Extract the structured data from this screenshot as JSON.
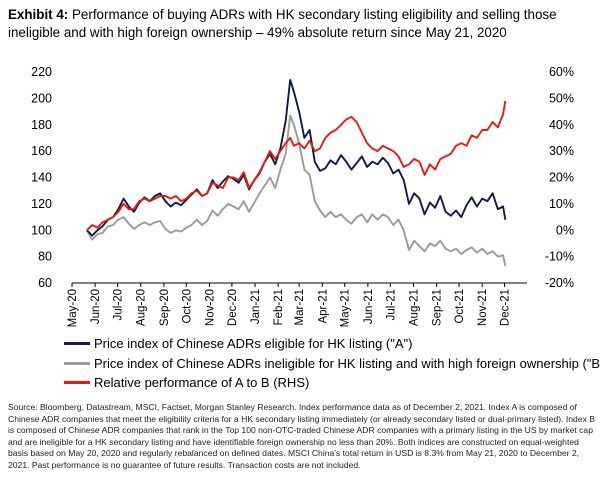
{
  "header": {
    "exhibit": "Exhibit 4:",
    "title": "Performance of buying ADRs with HK secondary listing eligibility and selling those ineligible and with high foreign ownership – 49% absolute return since May 21, 2020"
  },
  "footer": {
    "source": "Source: Bloomberg, Datastream, MSCI, Factset, Morgan Stanley Research. Index performance data as of December 2, 2021. Index A is composed of Chinese ADR companies that meet the eligibility criteria for a HK secondary listing immediately (or already secondary listed or dual-primary listed). Index B is composed of Chinese ADR companies that rank in the Top 100 non-OTC-traded Chinese ADR companies with a primary listing in the US by market cap and are ineligible for a HK secondary listing and have identifiable foreign ownership no less than 20%. Both indices are constructed on equal-weighted basis based on May 20, 2020 and regularly rebalanced on defined dates. MSCI China's total return in USD is 8.3% from May 21, 2020 to December 2, 2021. Past performance is no guarantee of future results. Transaction costs are not included."
  },
  "chart_data": {
    "type": "line",
    "title": "",
    "xlabel": "",
    "ylabel": "",
    "x_ticks": [
      "May-20",
      "Jun-20",
      "Jul-20",
      "Aug-20",
      "Sep-20",
      "Oct-20",
      "Nov-20",
      "Dec-20",
      "Jan-21",
      "Feb-21",
      "Mar-21",
      "Apr-21",
      "May-21",
      "Jun-21",
      "Jul-21",
      "Aug-21",
      "Sep-21",
      "Oct-21",
      "Nov-21",
      "Dec-21"
    ],
    "x_range": [
      "2020-05-01",
      "2021-12-31"
    ],
    "ylim_left": [
      60,
      220
    ],
    "yticks_left": [
      "60",
      "80",
      "100",
      "120",
      "140",
      "160",
      "180",
      "200",
      "220"
    ],
    "ylim_right": [
      -20,
      60
    ],
    "yticks_right": [
      "-20%",
      "-10%",
      "0%",
      "10%",
      "20%",
      "30%",
      "40%",
      "50%",
      "60%"
    ],
    "grid": false,
    "legend_position": "bottom",
    "series": [
      {
        "name": "Price index of Chinese ADRs eligible for HK listing (\"A\")",
        "color": "#0d1a4a",
        "axis": "left",
        "points": [
          [
            "2020-05-21",
            100
          ],
          [
            "2020-05-28",
            96
          ],
          [
            "2020-06-04",
            100
          ],
          [
            "2020-06-11",
            103
          ],
          [
            "2020-06-18",
            108
          ],
          [
            "2020-06-25",
            110
          ],
          [
            "2020-07-02",
            116
          ],
          [
            "2020-07-09",
            124
          ],
          [
            "2020-07-16",
            118
          ],
          [
            "2020-07-23",
            114
          ],
          [
            "2020-07-30",
            121
          ],
          [
            "2020-08-06",
            125
          ],
          [
            "2020-08-13",
            122
          ],
          [
            "2020-08-20",
            126
          ],
          [
            "2020-08-27",
            128
          ],
          [
            "2020-09-03",
            122
          ],
          [
            "2020-09-10",
            118
          ],
          [
            "2020-09-17",
            121
          ],
          [
            "2020-09-24",
            119
          ],
          [
            "2020-10-01",
            123
          ],
          [
            "2020-10-08",
            127
          ],
          [
            "2020-10-15",
            131
          ],
          [
            "2020-10-22",
            126
          ],
          [
            "2020-10-29",
            128
          ],
          [
            "2020-11-05",
            138
          ],
          [
            "2020-11-12",
            132
          ],
          [
            "2020-11-19",
            137
          ],
          [
            "2020-11-26",
            141
          ],
          [
            "2020-12-03",
            139
          ],
          [
            "2020-12-10",
            136
          ],
          [
            "2020-12-17",
            142
          ],
          [
            "2020-12-24",
            131
          ],
          [
            "2020-12-31",
            138
          ],
          [
            "2021-01-07",
            143
          ],
          [
            "2021-01-14",
            152
          ],
          [
            "2021-01-21",
            158
          ],
          [
            "2021-01-28",
            150
          ],
          [
            "2021-02-04",
            162
          ],
          [
            "2021-02-11",
            183
          ],
          [
            "2021-02-17",
            214
          ],
          [
            "2021-02-22",
            205
          ],
          [
            "2021-03-01",
            190
          ],
          [
            "2021-03-08",
            170
          ],
          [
            "2021-03-15",
            176
          ],
          [
            "2021-03-22",
            152
          ],
          [
            "2021-03-29",
            145
          ],
          [
            "2021-04-05",
            147
          ],
          [
            "2021-04-12",
            153
          ],
          [
            "2021-04-19",
            150
          ],
          [
            "2021-04-26",
            157
          ],
          [
            "2021-05-03",
            152
          ],
          [
            "2021-05-10",
            146
          ],
          [
            "2021-05-17",
            151
          ],
          [
            "2021-05-24",
            156
          ],
          [
            "2021-05-31",
            148
          ],
          [
            "2021-06-07",
            152
          ],
          [
            "2021-06-14",
            150
          ],
          [
            "2021-06-21",
            155
          ],
          [
            "2021-06-28",
            151
          ],
          [
            "2021-07-05",
            143
          ],
          [
            "2021-07-12",
            146
          ],
          [
            "2021-07-19",
            138
          ],
          [
            "2021-07-26",
            120
          ],
          [
            "2021-08-02",
            128
          ],
          [
            "2021-08-09",
            124
          ],
          [
            "2021-08-16",
            112
          ],
          [
            "2021-08-23",
            121
          ],
          [
            "2021-08-30",
            117
          ],
          [
            "2021-09-06",
            126
          ],
          [
            "2021-09-13",
            114
          ],
          [
            "2021-09-20",
            111
          ],
          [
            "2021-09-27",
            115
          ],
          [
            "2021-10-04",
            110
          ],
          [
            "2021-10-11",
            119
          ],
          [
            "2021-10-18",
            125
          ],
          [
            "2021-10-25",
            118
          ],
          [
            "2021-11-01",
            124
          ],
          [
            "2021-11-08",
            122
          ],
          [
            "2021-11-15",
            128
          ],
          [
            "2021-11-22",
            116
          ],
          [
            "2021-11-29",
            118
          ],
          [
            "2021-12-02",
            108
          ]
        ]
      },
      {
        "name": "Price index of Chinese ADRs ineligible for HK listing and with high foreign ownership (\"B\")",
        "color": "#9a9a9a",
        "axis": "left",
        "points": [
          [
            "2020-05-21",
            100
          ],
          [
            "2020-05-28",
            93
          ],
          [
            "2020-06-04",
            97
          ],
          [
            "2020-06-11",
            98
          ],
          [
            "2020-06-18",
            103
          ],
          [
            "2020-06-25",
            104
          ],
          [
            "2020-07-02",
            108
          ],
          [
            "2020-07-09",
            110
          ],
          [
            "2020-07-16",
            105
          ],
          [
            "2020-07-23",
            101
          ],
          [
            "2020-07-30",
            104
          ],
          [
            "2020-08-06",
            106
          ],
          [
            "2020-08-13",
            104
          ],
          [
            "2020-08-20",
            106
          ],
          [
            "2020-08-27",
            107
          ],
          [
            "2020-09-03",
            101
          ],
          [
            "2020-09-10",
            98
          ],
          [
            "2020-09-17",
            100
          ],
          [
            "2020-09-24",
            99
          ],
          [
            "2020-10-01",
            102
          ],
          [
            "2020-10-08",
            104
          ],
          [
            "2020-10-15",
            108
          ],
          [
            "2020-10-22",
            104
          ],
          [
            "2020-10-29",
            107
          ],
          [
            "2020-11-05",
            115
          ],
          [
            "2020-11-12",
            111
          ],
          [
            "2020-11-19",
            116
          ],
          [
            "2020-11-26",
            120
          ],
          [
            "2020-12-03",
            118
          ],
          [
            "2020-12-10",
            116
          ],
          [
            "2020-12-17",
            122
          ],
          [
            "2020-12-24",
            114
          ],
          [
            "2020-12-31",
            121
          ],
          [
            "2021-01-07",
            128
          ],
          [
            "2021-01-14",
            134
          ],
          [
            "2021-01-21",
            140
          ],
          [
            "2021-01-28",
            132
          ],
          [
            "2021-02-04",
            146
          ],
          [
            "2021-02-11",
            158
          ],
          [
            "2021-02-17",
            187
          ],
          [
            "2021-02-22",
            180
          ],
          [
            "2021-03-01",
            166
          ],
          [
            "2021-03-08",
            146
          ],
          [
            "2021-03-15",
            142
          ],
          [
            "2021-03-22",
            122
          ],
          [
            "2021-03-29",
            115
          ],
          [
            "2021-04-05",
            110
          ],
          [
            "2021-04-12",
            114
          ],
          [
            "2021-04-19",
            110
          ],
          [
            "2021-04-26",
            112
          ],
          [
            "2021-05-03",
            108
          ],
          [
            "2021-05-10",
            105
          ],
          [
            "2021-05-17",
            110
          ],
          [
            "2021-05-24",
            112
          ],
          [
            "2021-05-31",
            106
          ],
          [
            "2021-06-07",
            112
          ],
          [
            "2021-06-14",
            108
          ],
          [
            "2021-06-21",
            112
          ],
          [
            "2021-06-28",
            110
          ],
          [
            "2021-07-05",
            104
          ],
          [
            "2021-07-12",
            108
          ],
          [
            "2021-07-19",
            100
          ],
          [
            "2021-07-26",
            85
          ],
          [
            "2021-08-02",
            92
          ],
          [
            "2021-08-09",
            88
          ],
          [
            "2021-08-16",
            84
          ],
          [
            "2021-08-23",
            90
          ],
          [
            "2021-08-30",
            88
          ],
          [
            "2021-09-06",
            92
          ],
          [
            "2021-09-13",
            86
          ],
          [
            "2021-09-20",
            84
          ],
          [
            "2021-09-27",
            86
          ],
          [
            "2021-10-04",
            82
          ],
          [
            "2021-10-11",
            85
          ],
          [
            "2021-10-18",
            87
          ],
          [
            "2021-10-25",
            83
          ],
          [
            "2021-11-01",
            86
          ],
          [
            "2021-11-08",
            82
          ],
          [
            "2021-11-15",
            84
          ],
          [
            "2021-11-22",
            80
          ],
          [
            "2021-11-29",
            81
          ],
          [
            "2021-12-02",
            73
          ]
        ]
      },
      {
        "name": "Relative performance of A to B (RHS)",
        "color": "#e21b16",
        "axis": "right",
        "points": [
          [
            "2020-05-21",
            0
          ],
          [
            "2020-05-28",
            2
          ],
          [
            "2020-06-04",
            1
          ],
          [
            "2020-06-11",
            3
          ],
          [
            "2020-06-18",
            4
          ],
          [
            "2020-06-25",
            5
          ],
          [
            "2020-07-02",
            7
          ],
          [
            "2020-07-09",
            10
          ],
          [
            "2020-07-16",
            8
          ],
          [
            "2020-07-23",
            8
          ],
          [
            "2020-07-30",
            11
          ],
          [
            "2020-08-06",
            12
          ],
          [
            "2020-08-13",
            11
          ],
          [
            "2020-08-20",
            12
          ],
          [
            "2020-08-27",
            13
          ],
          [
            "2020-09-03",
            13
          ],
          [
            "2020-09-10",
            12
          ],
          [
            "2020-09-17",
            13
          ],
          [
            "2020-09-24",
            11
          ],
          [
            "2020-10-01",
            12
          ],
          [
            "2020-10-08",
            14
          ],
          [
            "2020-10-15",
            15
          ],
          [
            "2020-10-22",
            13
          ],
          [
            "2020-10-29",
            14
          ],
          [
            "2020-11-05",
            18
          ],
          [
            "2020-11-12",
            17
          ],
          [
            "2020-11-19",
            16
          ],
          [
            "2020-11-26",
            20
          ],
          [
            "2020-12-03",
            20
          ],
          [
            "2020-12-10",
            19
          ],
          [
            "2020-12-17",
            22
          ],
          [
            "2020-12-24",
            16
          ],
          [
            "2020-12-31",
            19
          ],
          [
            "2021-01-07",
            22
          ],
          [
            "2021-01-14",
            26
          ],
          [
            "2021-01-21",
            30
          ],
          [
            "2021-01-28",
            27
          ],
          [
            "2021-02-04",
            30
          ],
          [
            "2021-02-11",
            33
          ],
          [
            "2021-02-17",
            35
          ],
          [
            "2021-02-22",
            32
          ],
          [
            "2021-03-01",
            33
          ],
          [
            "2021-03-08",
            31
          ],
          [
            "2021-03-15",
            34
          ],
          [
            "2021-03-22",
            30
          ],
          [
            "2021-03-29",
            31
          ],
          [
            "2021-04-05",
            35
          ],
          [
            "2021-04-12",
            37
          ],
          [
            "2021-04-19",
            38
          ],
          [
            "2021-04-26",
            40
          ],
          [
            "2021-05-03",
            42
          ],
          [
            "2021-05-10",
            43
          ],
          [
            "2021-05-17",
            41
          ],
          [
            "2021-05-24",
            37
          ],
          [
            "2021-05-31",
            33
          ],
          [
            "2021-06-07",
            31
          ],
          [
            "2021-06-14",
            30
          ],
          [
            "2021-06-21",
            32
          ],
          [
            "2021-06-28",
            31
          ],
          [
            "2021-07-05",
            30
          ],
          [
            "2021-07-12",
            28
          ],
          [
            "2021-07-19",
            24
          ],
          [
            "2021-07-26",
            25
          ],
          [
            "2021-08-02",
            27
          ],
          [
            "2021-08-09",
            26
          ],
          [
            "2021-08-16",
            21
          ],
          [
            "2021-08-23",
            25
          ],
          [
            "2021-08-30",
            23
          ],
          [
            "2021-09-06",
            27
          ],
          [
            "2021-09-13",
            28
          ],
          [
            "2021-09-20",
            29
          ],
          [
            "2021-09-27",
            32
          ],
          [
            "2021-10-04",
            33
          ],
          [
            "2021-10-11",
            32
          ],
          [
            "2021-10-18",
            36
          ],
          [
            "2021-10-25",
            35
          ],
          [
            "2021-11-01",
            38
          ],
          [
            "2021-11-08",
            38
          ],
          [
            "2021-11-15",
            41
          ],
          [
            "2021-11-22",
            39
          ],
          [
            "2021-11-29",
            44
          ],
          [
            "2021-12-02",
            49
          ]
        ]
      }
    ]
  }
}
